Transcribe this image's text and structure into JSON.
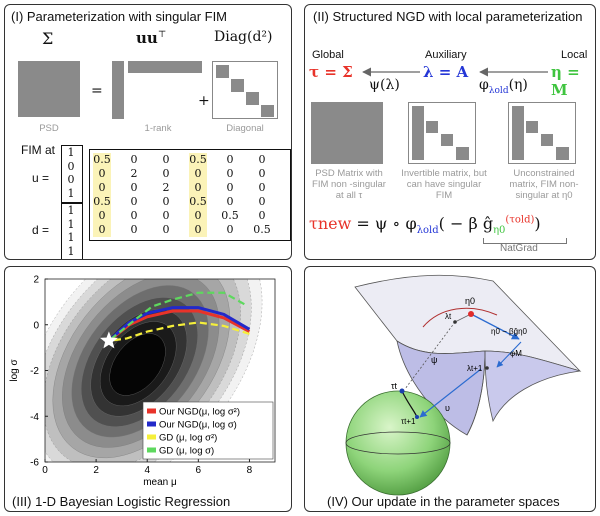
{
  "panel1": {
    "title": "(I) Parameterization with singular FIM",
    "sigma_label": "Σ",
    "uu_label": "uu",
    "uu_sup": "⊤",
    "diag_label": "Diag(d²)",
    "equals": "=",
    "plus": "+",
    "psd_caption": "PSD",
    "rank_caption": "1-rank",
    "diag_caption": "Diagonal",
    "fim_at": "FIM at",
    "u_label": "u =",
    "d_label": "d =",
    "u_vector": [
      "1",
      "0",
      "0",
      "1"
    ],
    "d_vector": [
      "1",
      "1",
      "1",
      "1"
    ],
    "fim_matrix": [
      [
        "0.5",
        "0",
        "0",
        "0.5",
        "0",
        "0"
      ],
      [
        "0",
        "2",
        "0",
        "0",
        "0",
        "0"
      ],
      [
        "0",
        "0",
        "2",
        "0",
        "0",
        "0"
      ],
      [
        "0.5",
        "0",
        "0",
        "0.5",
        "0",
        "0"
      ],
      [
        "0",
        "0",
        "0",
        "0",
        "0.5",
        "0"
      ],
      [
        "0",
        "0",
        "0",
        "0",
        "0",
        "0.5"
      ]
    ]
  },
  "panel2": {
    "title": "(II) Structured NGD with local parameterization",
    "global_label": "Global",
    "auxiliary_label": "Auxiliary",
    "local_label": "Local",
    "tau_eq": "τ = Σ",
    "lambda_eq": "λ = A",
    "eta_eq": "η = M",
    "psi_map": "ψ(λ)",
    "phi_map": "φ",
    "phi_sub": "λold",
    "phi_arg": "(η)",
    "cap_global": "PSD Matrix with FIM non -singular at all τ",
    "cap_aux": "Invertible matrix, but can have singular FIM",
    "cap_local": "Unconstrained matrix, FIM non-singular at η0",
    "update_tau": "τnew",
    "update_eq": "= ψ ∘ φ",
    "update_lambda": "λold",
    "update_paren": "( − β ĝ",
    "update_eta": "η0",
    "update_tauold": "(τold)",
    "update_close": ")",
    "natgrad_label": "NatGrad",
    "colors": {
      "tau": "#e8332a",
      "lambda": "#2436d6",
      "eta": "#3fc43f",
      "tau_new": "#e8332a"
    }
  },
  "panel3": {
    "title": "(III) 1-D Bayesian Logistic Regression",
    "chart_data": {
      "type": "line",
      "xlabel": "mean μ",
      "ylabel": "log σ",
      "xlim": [
        0,
        9
      ],
      "ylim": [
        -6,
        2
      ],
      "xticks": [
        "0",
        "2",
        "4",
        "6",
        "8"
      ],
      "yticks": [
        "2",
        "0",
        "-2",
        "-4",
        "-6"
      ],
      "background": "filled contour (dark center, light edges)",
      "optimum": {
        "x": 2.5,
        "y": -0.7
      },
      "series": [
        {
          "name": "Our NGD(μ, log σ²)",
          "color": "#e8332a",
          "style": "solid",
          "x": [
            8,
            7,
            6,
            5,
            4,
            3.3,
            2.5
          ],
          "y": [
            -0.3,
            0.3,
            0.6,
            0.6,
            0.35,
            0.0,
            -0.7
          ]
        },
        {
          "name": "Our NGD(μ, log σ)",
          "color": "#2229c9",
          "style": "solid",
          "x": [
            8,
            7,
            6,
            5,
            4,
            3.3,
            2.5
          ],
          "y": [
            -0.2,
            0.45,
            0.75,
            0.75,
            0.5,
            0.1,
            -0.7
          ]
        },
        {
          "name": "GD (μ, log σ²)",
          "color": "#f5ef3a",
          "style": "dashed",
          "x": [
            8,
            7,
            6,
            5,
            4,
            3.2,
            2.5
          ],
          "y": [
            -0.4,
            -0.05,
            0.1,
            -0.05,
            -0.3,
            -0.6,
            -0.7
          ]
        },
        {
          "name": "GD (μ, log σ)",
          "color": "#5ed85e",
          "style": "dashed",
          "x": [
            7.8,
            7,
            6,
            5,
            4.2,
            3.5,
            2.5
          ],
          "y": [
            0.9,
            1.4,
            1.4,
            1.1,
            0.8,
            0.2,
            -0.7
          ]
        }
      ],
      "legend_position": "bottom-right"
    }
  },
  "panel4": {
    "title": "(IV) Our update in the parameter spaces",
    "labels": {
      "eta0": "η0",
      "lambda_t": "λt",
      "eta_update": "η0 − βĝη0",
      "phi_m": "φM",
      "lambda_next": "λt+1",
      "psi": "ψ",
      "tau_t": "τt",
      "tau_next": "τt+1",
      "upsilon": "υ"
    }
  }
}
